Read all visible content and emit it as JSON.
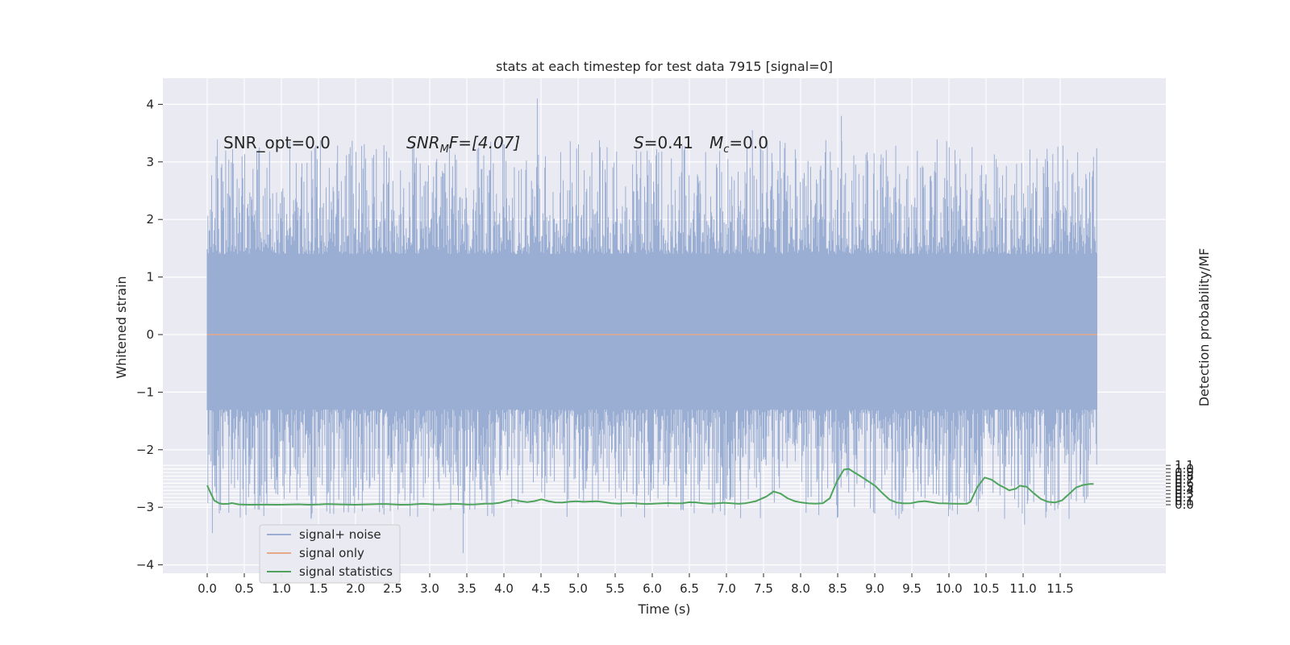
{
  "chart_data": {
    "type": "line",
    "title": "stats at each timestep for test data 7915 [signal=0]",
    "xlabel": "Time (s)",
    "ylabel": "Whitened strain",
    "ylabel_right": "Detection probability/MF",
    "xlim": [
      -0.6,
      12.6
    ],
    "ylim": [
      -4.2,
      4.45
    ],
    "ylim_right": [
      -0.19,
      1.18
    ],
    "grid": true,
    "x_ticks": [
      0.0,
      0.5,
      1.0,
      1.5,
      2.0,
      2.5,
      3.0,
      3.5,
      4.0,
      4.5,
      5.0,
      5.5,
      6.0,
      6.5,
      7.0,
      7.5,
      8.0,
      8.5,
      9.0,
      9.5,
      10.0,
      10.5,
      11.0,
      11.5
    ],
    "x_tick_labels": [
      "0.0",
      "0.5",
      "1.0",
      "1.5",
      "2.0",
      "2.5",
      "3.0",
      "3.5",
      "4.0",
      "4.5",
      "5.0",
      "5.5",
      "6.0",
      "6.5",
      "7.0",
      "7.5",
      "8.0",
      "8.5",
      "9.0",
      "9.5",
      "10.0",
      "10.5",
      "11.0",
      "11.5"
    ],
    "y_ticks": [
      -4,
      -3,
      -2,
      -1,
      0,
      1,
      2,
      3,
      4
    ],
    "y_tick_labels": [
      "−4",
      "−3",
      "−2",
      "−1",
      "0",
      "1",
      "2",
      "3",
      "4"
    ],
    "y_right_ticks": [
      0.0,
      0.1,
      0.2,
      0.3,
      0.4,
      0.5,
      0.6,
      0.7,
      0.8,
      0.9,
      1.0,
      1.1
    ],
    "y_right_tick_labels": [
      "0.0",
      "0.1",
      "0.2",
      "0.3",
      "0.4",
      "0.5",
      "0.6",
      "0.7",
      "0.8",
      "0.9",
      "1.0",
      "1.1"
    ],
    "legend_position": "lower-left",
    "annotations": {
      "snr_opt": "SNR_opt=0.0",
      "snr_mf_base": "SNR",
      "snr_mf_sub": "M",
      "snr_mf_rest": "F=[4.07]",
      "s_stat": "=0.41",
      "s_label": "S",
      "mc_base": "M",
      "mc_sub": "c",
      "mc_rest": "=0.0"
    },
    "series": [
      {
        "name": "signal+ noise",
        "color": "#9aadd2",
        "axis": "left",
        "x_range": [
          0.0,
          12.0
        ],
        "band_inner": [
          -1.3,
          1.4
        ],
        "max_value": 4.1,
        "min_value": -3.8
      },
      {
        "name": "signal only",
        "color": "#e5a98a",
        "axis": "left",
        "x": [
          0.0,
          12.0
        ],
        "y": [
          0.0,
          0.0
        ]
      },
      {
        "name": "signal statistics",
        "color": "#4ea45c",
        "axis": "right",
        "x": [
          0.0,
          0.1,
          0.2,
          0.3,
          0.4,
          0.5,
          0.6,
          0.7,
          0.8,
          0.9,
          1.0,
          1.1,
          1.2,
          1.3,
          1.4,
          1.5,
          1.6,
          1.7,
          1.8,
          1.9,
          2.0,
          2.1,
          2.2,
          2.3,
          2.4,
          2.5,
          2.6,
          2.7,
          2.8,
          2.9,
          3.0,
          3.1,
          3.2,
          3.3,
          3.4,
          3.5,
          3.6,
          3.7,
          3.8,
          3.9,
          4.0,
          4.1,
          4.2,
          4.3,
          4.4,
          4.5,
          4.6,
          4.7,
          4.8,
          4.9,
          5.0,
          5.1,
          5.2,
          5.3,
          5.4,
          5.5,
          5.6,
          5.7,
          5.8,
          5.9,
          6.0,
          6.1,
          6.2,
          6.3,
          6.4,
          6.5,
          6.6,
          6.7,
          6.8,
          6.9,
          7.0,
          7.1,
          7.2,
          7.3,
          7.4,
          7.5,
          7.6,
          7.7,
          7.8,
          7.9,
          8.0,
          8.1,
          8.2,
          8.3,
          8.4,
          8.5,
          8.6,
          8.7,
          8.8,
          8.9,
          9.0,
          9.1,
          9.2,
          9.3,
          9.4,
          9.5,
          9.6,
          9.7,
          9.8,
          9.9,
          10.0,
          10.1,
          10.2,
          10.3,
          10.4,
          10.5,
          10.6,
          10.7,
          10.8,
          10.9,
          11.0,
          11.1,
          11.2,
          11.3,
          11.4,
          11.5,
          11.6,
          11.7,
          11.8,
          11.9,
          11.95
        ],
        "y": [
          0.54,
          0.06,
          0.02,
          0.025,
          0.045,
          0.02,
          0.0,
          0.0,
          0.002,
          0.0,
          0.0,
          0.003,
          0.008,
          0.004,
          0.01,
          0.02,
          0.01,
          0.0,
          0.002,
          0.02,
          0.016,
          0.01,
          0.006,
          0.008,
          0.013,
          0.019,
          0.016,
          0.009,
          0.004,
          0.002,
          0.003,
          0.018,
          0.038,
          0.032,
          0.019,
          0.017,
          0.028,
          0.036,
          0.03,
          0.02,
          0.015,
          0.008,
          0.012,
          0.02,
          0.025,
          0.02,
          0.015,
          0.02,
          0.025,
          0.02,
          0.03,
          0.04,
          0.03,
          0.02,
          0.02,
          0.02,
          0.02,
          0.02,
          0.02,
          0.02,
          0.04,
          0.05,
          0.06,
          0.08,
          0.12,
          0.14,
          0.1,
          0.07,
          0.09,
          0.14,
          0.15,
          0.09,
          0.06,
          0.05,
          0.08,
          0.09,
          0.08,
          0.07,
          0.09,
          0.09,
          0.12,
          0.09,
          0.07,
          0.04,
          0.03,
          0.05,
          0.06,
          0.05,
          0.04,
          0.06,
          0.08,
          0.08,
          0.06,
          0.05,
          0.04,
          0.03,
          0.03,
          0.03,
          0.05,
          0.03,
          0.03,
          0.05,
          0.04,
          0.03,
          0.02,
          0.02,
          0.01,
          0.02,
          0.02,
          0.01,
          0.03,
          0.04,
          0.02,
          0.02,
          0.03,
          0.03,
          0.02,
          0.02,
          0.03,
          0.2,
          0.25
        ],
        "points": [
          [
            0.0,
            0.54
          ],
          [
            0.05,
            0.32
          ],
          [
            0.1,
            0.12
          ],
          [
            0.17,
            0.04
          ],
          [
            0.22,
            0.02
          ],
          [
            0.3,
            0.025
          ],
          [
            0.35,
            0.045
          ],
          [
            0.45,
            0.01
          ],
          [
            0.6,
            0.0
          ],
          [
            0.8,
            0.003
          ],
          [
            1.0,
            0.0
          ],
          [
            1.1,
            0.003
          ],
          [
            1.3,
            0.012
          ],
          [
            1.45,
            0.0
          ],
          [
            1.6,
            0.01
          ],
          [
            1.7,
            0.02
          ],
          [
            1.9,
            0.01
          ],
          [
            2.1,
            0.0
          ],
          [
            2.3,
            0.012
          ],
          [
            2.45,
            0.02
          ],
          [
            2.55,
            0.02
          ],
          [
            2.75,
            0.0
          ],
          [
            2.9,
            0.004
          ],
          [
            3.05,
            0.025
          ],
          [
            3.15,
            0.02
          ],
          [
            3.25,
            0.005
          ],
          [
            3.35,
            0.01
          ],
          [
            3.5,
            0.025
          ],
          [
            3.6,
            0.02
          ],
          [
            3.7,
            0.005
          ],
          [
            3.8,
            0.01
          ],
          [
            3.95,
            0.03
          ],
          [
            4.05,
            0.03
          ],
          [
            4.15,
            0.05
          ],
          [
            4.25,
            0.1
          ],
          [
            4.35,
            0.145
          ],
          [
            4.45,
            0.1
          ],
          [
            4.55,
            0.075
          ],
          [
            4.65,
            0.1
          ],
          [
            4.75,
            0.15
          ],
          [
            4.85,
            0.1
          ],
          [
            4.95,
            0.065
          ],
          [
            5.05,
            0.06
          ],
          [
            5.15,
            0.085
          ],
          [
            5.25,
            0.095
          ],
          [
            5.35,
            0.08
          ],
          [
            5.45,
            0.09
          ],
          [
            5.55,
            0.095
          ],
          [
            5.65,
            0.07
          ],
          [
            5.75,
            0.04
          ],
          [
            5.85,
            0.03
          ],
          [
            5.95,
            0.04
          ],
          [
            6.05,
            0.045
          ],
          [
            6.15,
            0.03
          ],
          [
            6.25,
            0.02
          ],
          [
            6.35,
            0.03
          ],
          [
            6.45,
            0.035
          ],
          [
            6.55,
            0.045
          ],
          [
            6.65,
            0.035
          ],
          [
            6.75,
            0.04
          ],
          [
            6.85,
            0.07
          ],
          [
            6.95,
            0.065
          ],
          [
            7.05,
            0.04
          ],
          [
            7.15,
            0.03
          ],
          [
            7.25,
            0.04
          ],
          [
            7.35,
            0.055
          ],
          [
            7.45,
            0.04
          ],
          [
            7.55,
            0.025
          ],
          [
            7.65,
            0.04
          ],
          [
            7.8,
            0.1
          ],
          [
            7.95,
            0.23
          ],
          [
            8.05,
            0.37
          ],
          [
            8.15,
            0.31
          ],
          [
            8.25,
            0.18
          ],
          [
            8.35,
            0.1
          ],
          [
            8.45,
            0.06
          ],
          [
            8.55,
            0.035
          ],
          [
            8.65,
            0.03
          ],
          [
            8.75,
            0.04
          ],
          [
            8.85,
            0.18
          ],
          [
            8.95,
            0.65
          ],
          [
            9.05,
            0.98
          ],
          [
            9.12,
            1.0
          ],
          [
            9.2,
            0.9
          ],
          [
            9.3,
            0.78
          ],
          [
            9.4,
            0.65
          ],
          [
            9.5,
            0.52
          ],
          [
            9.6,
            0.32
          ],
          [
            9.7,
            0.14
          ],
          [
            9.8,
            0.06
          ],
          [
            9.9,
            0.035
          ],
          [
            10.0,
            0.04
          ],
          [
            10.1,
            0.08
          ],
          [
            10.2,
            0.1
          ],
          [
            10.3,
            0.07
          ],
          [
            10.4,
            0.04
          ],
          [
            10.5,
            0.035
          ],
          [
            10.6,
            0.03
          ],
          [
            10.7,
            0.025
          ],
          [
            10.8,
            0.03
          ],
          [
            10.85,
            0.08
          ],
          [
            10.95,
            0.5
          ],
          [
            11.05,
            0.76
          ],
          [
            11.15,
            0.7
          ],
          [
            11.25,
            0.56
          ],
          [
            11.35,
            0.46
          ],
          [
            11.4,
            0.4
          ],
          [
            11.5,
            0.45
          ],
          [
            11.55,
            0.53
          ],
          [
            11.65,
            0.5
          ],
          [
            11.75,
            0.32
          ],
          [
            11.85,
            0.16
          ],
          [
            11.95,
            0.08
          ],
          [
            12.05,
            0.06
          ],
          [
            12.15,
            0.12
          ],
          [
            12.25,
            0.3
          ],
          [
            12.35,
            0.48
          ],
          [
            12.45,
            0.55
          ],
          [
            12.55,
            0.58
          ],
          [
            12.6,
            0.58
          ]
        ],
        "note_points_scaled": true
      }
    ]
  }
}
